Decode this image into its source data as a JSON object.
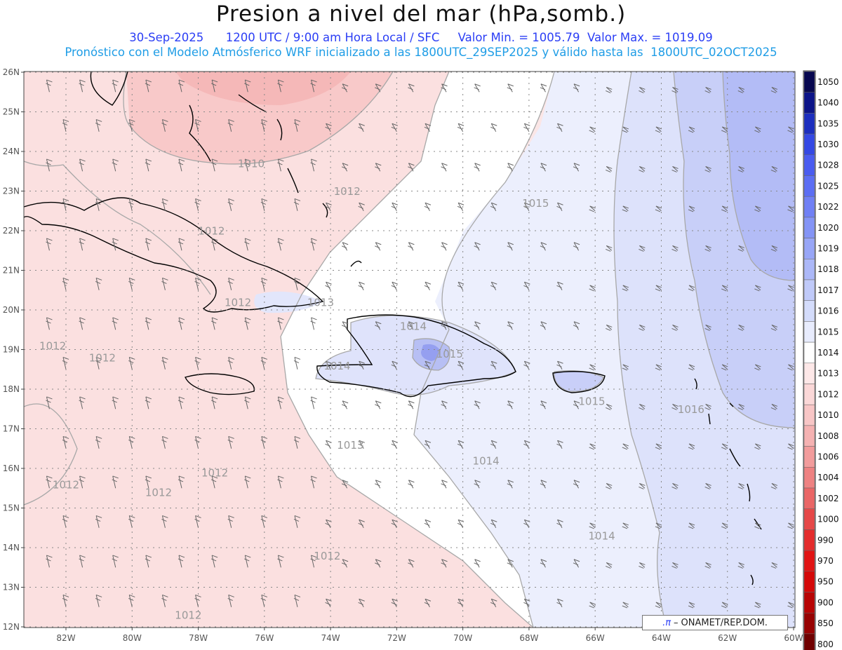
{
  "header": {
    "title": "Presion a nivel del mar (hPa,somb.)",
    "date": "30-Sep-2025",
    "time_info": "1200 UTC / 9:00 am Hora Local / SFC",
    "min_value": "Valor Min. = 1005.79",
    "max_value": "Valor Max. = 1019.09",
    "model_line": "Pronóstico con el Modelo Atmósferico WRF inicializado a las 1800UTC_29SEP2025 y válido hasta las  1800UTC_02OCT2025"
  },
  "axes": {
    "lat_labels": [
      "26N",
      "25N",
      "24N",
      "23N",
      "22N",
      "21N",
      "20N",
      "19N",
      "18N",
      "17N",
      "16N",
      "15N",
      "14N",
      "13N",
      "12N"
    ],
    "lon_labels": [
      "82W",
      "80W",
      "78W",
      "76W",
      "74W",
      "72W",
      "70W",
      "68W",
      "66W",
      "64W",
      "62W",
      "60W"
    ]
  },
  "contour_labels": [
    {
      "text": "1010",
      "lon": -76.4,
      "lat": 23.6
    },
    {
      "text": "1012",
      "lon": -73.5,
      "lat": 22.9
    },
    {
      "text": "1015",
      "lon": -67.8,
      "lat": 22.6
    },
    {
      "text": "1012",
      "lon": -77.6,
      "lat": 21.9
    },
    {
      "text": "1012",
      "lon": -76.8,
      "lat": 20.1
    },
    {
      "text": "1013",
      "lon": -74.3,
      "lat": 20.1
    },
    {
      "text": "1014",
      "lon": -71.5,
      "lat": 19.5
    },
    {
      "text": "1015",
      "lon": -70.4,
      "lat": 18.8
    },
    {
      "text": "1014",
      "lon": -73.8,
      "lat": 18.5
    },
    {
      "text": "1012",
      "lon": -82.4,
      "lat": 19.0
    },
    {
      "text": "1012",
      "lon": -80.9,
      "lat": 18.7
    },
    {
      "text": "1015",
      "lon": -66.1,
      "lat": 17.6
    },
    {
      "text": "1016",
      "lon": -63.1,
      "lat": 17.4
    },
    {
      "text": "1013",
      "lon": -73.4,
      "lat": 16.5
    },
    {
      "text": "1014",
      "lon": -69.3,
      "lat": 16.1
    },
    {
      "text": "1012",
      "lon": -77.5,
      "lat": 15.8
    },
    {
      "text": "1012",
      "lon": -82.0,
      "lat": 15.5
    },
    {
      "text": "1012",
      "lon": -79.2,
      "lat": 15.3
    },
    {
      "text": "1014",
      "lon": -65.8,
      "lat": 14.2
    },
    {
      "text": "1012",
      "lon": -74.1,
      "lat": 13.7
    },
    {
      "text": "1012",
      "lon": -78.3,
      "lat": 12.2
    }
  ],
  "colorbar": {
    "levels": [
      "1050",
      "1040",
      "1035",
      "1030",
      "1028",
      "1025",
      "1022",
      "1020",
      "1019",
      "1018",
      "1017",
      "1016",
      "1015",
      "1014",
      "1013",
      "1012",
      "1010",
      "1008",
      "1006",
      "1004",
      "1002",
      "1000",
      "990",
      "970",
      "950",
      "900",
      "850",
      "800"
    ],
    "colors": [
      "#080850",
      "#0c1488",
      "#1c2ebe",
      "#3448e4",
      "#4a5cf0",
      "#5c6ef4",
      "#7080f5",
      "#8494f6",
      "#98a6f7",
      "#acb8f8",
      "#c0caf9",
      "#d4dcfb",
      "#e8ecfd",
      "#ffffff",
      "#fde8e8",
      "#fbd8d8",
      "#f8c6c6",
      "#f5b2b2",
      "#f29c9c",
      "#ee8282",
      "#ea6666",
      "#e64848",
      "#e42c2c",
      "#e11414",
      "#d40808",
      "#b80404",
      "#980202",
      "#700000"
    ]
  },
  "credit": {
    "symbol": ".π",
    "text": "ONAMET/REP.DOM."
  }
}
